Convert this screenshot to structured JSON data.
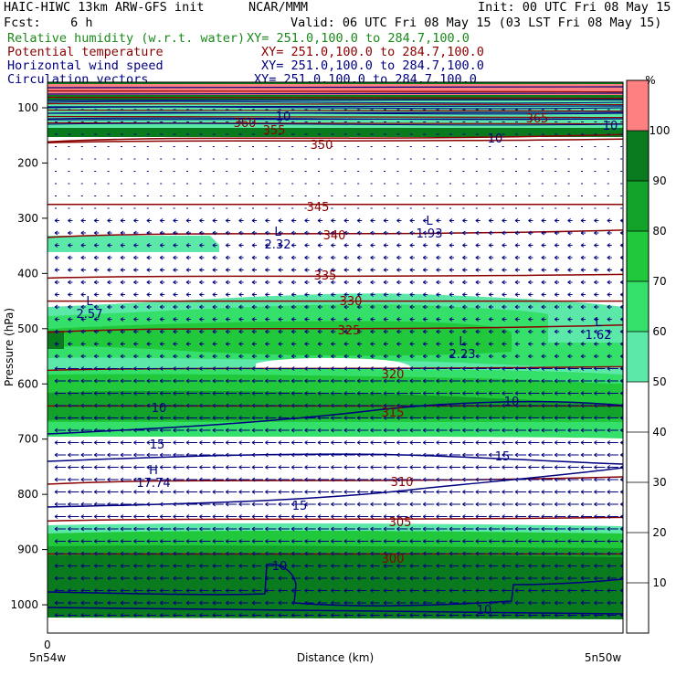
{
  "header": {
    "title_left": "HAIC-HIWC 13km ARW-GFS init",
    "org": "NCAR/MMM",
    "init": "Init: 00 UTC Fri 08 May 15",
    "fcst": "Fcst:    6 h",
    "valid": "Valid: 06 UTC Fri 08 May 15 (03 LST Fri 08 May 15)",
    "fields": [
      {
        "name": "Relative humidity (w.r.t. water)",
        "xy": "XY= 251.0,100.0 to 284.7,100.0",
        "color": "#1a8a1a"
      },
      {
        "name": "Potential temperature",
        "xy": "XY= 251.0,100.0 to 284.7,100.0",
        "color": "#8b0000"
      },
      {
        "name": "Horizontal wind speed",
        "xy": "XY= 251.0,100.0 to 284.7,100.0",
        "color": "#000080"
      },
      {
        "name": "Circulation vectors",
        "xy": "XY= 251.0,100.0 to 284.7,100.0",
        "color": "#000080"
      }
    ]
  },
  "chart_data": {
    "type": "cross-section",
    "xlabel": "Distance (km)",
    "ylabel": "Pressure (hPa)",
    "x_ticks": {
      "start": "0",
      "left_end": "5n54w",
      "right_end": "5n50w"
    },
    "y_ticks": [
      100,
      200,
      300,
      400,
      500,
      600,
      700,
      800,
      900,
      1000
    ],
    "ylim": [
      60,
      1040
    ],
    "colorbar": {
      "unit": "%",
      "ticks": [
        10,
        20,
        30,
        40,
        50,
        60,
        70,
        80,
        90,
        100
      ],
      "bands": [
        {
          "from": 50,
          "to": 60,
          "color": "#5ce8a8"
        },
        {
          "from": 60,
          "to": 70,
          "color": "#34e06a"
        },
        {
          "from": 70,
          "to": 80,
          "color": "#22c83c"
        },
        {
          "from": 80,
          "to": 90,
          "color": "#12a22a"
        },
        {
          "from": 90,
          "to": 100,
          "color": "#0a7a1e"
        },
        {
          "from": 100,
          "to": 110,
          "color": "#ff8080"
        }
      ]
    },
    "theta_contours": [
      {
        "label": "355",
        "p": 155
      },
      {
        "label": "350",
        "p": 160
      },
      {
        "label": "345",
        "p": 275
      },
      {
        "label": "340",
        "p": 328
      },
      {
        "label": "335",
        "p": 405
      },
      {
        "label": "330",
        "p": 450
      },
      {
        "label": "325",
        "p": 500
      },
      {
        "label": "320",
        "p": 572
      },
      {
        "label": "315",
        "p": 640
      },
      {
        "label": "310",
        "p": 775
      },
      {
        "label": "305",
        "p": 845
      },
      {
        "label": "300",
        "p": 908
      }
    ],
    "theta_labels_extra": [
      "360",
      "365"
    ],
    "wind_contour_labels": [
      "10",
      "10",
      "10",
      "10",
      "15",
      "15",
      "15",
      "10",
      "10",
      "10"
    ],
    "extrema": [
      {
        "kind": "L",
        "value": "2.32"
      },
      {
        "kind": "L",
        "value": "1.93"
      },
      {
        "kind": "L",
        "value": "2.57"
      },
      {
        "kind": "L",
        "value": "2.23"
      },
      {
        "kind": "L",
        "value": "1.62"
      },
      {
        "kind": "H",
        "value": "17.74"
      }
    ],
    "grid": false
  }
}
